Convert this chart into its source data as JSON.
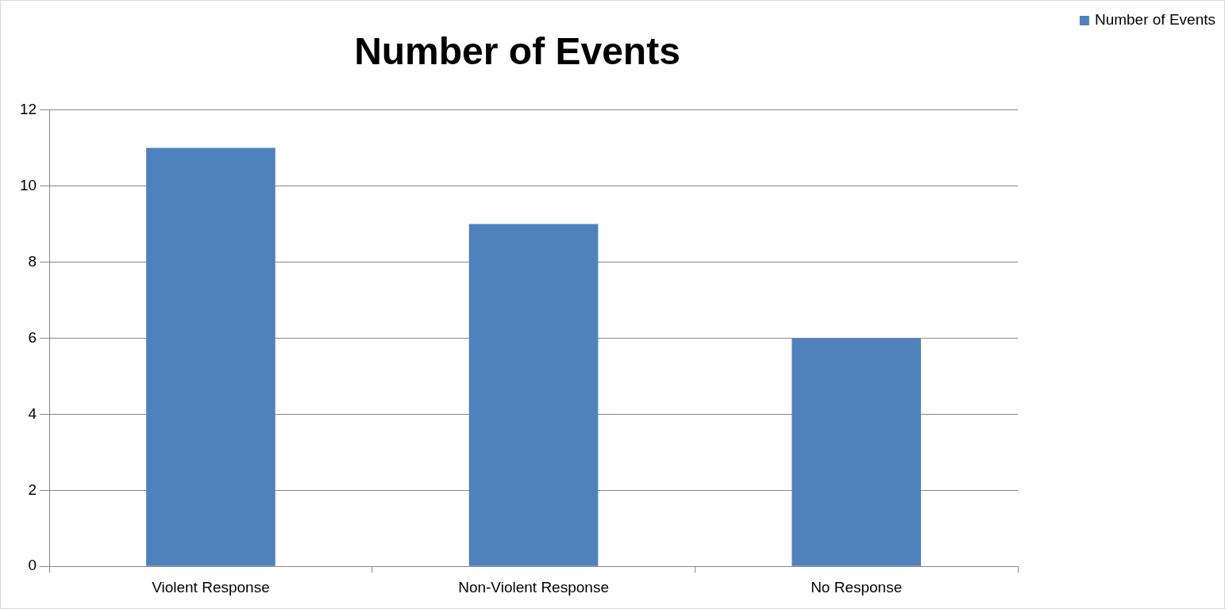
{
  "chart_data": {
    "type": "bar",
    "title": "Number of Events",
    "categories": [
      "Violent Response",
      "Non-Violent Response",
      "No Response"
    ],
    "series": [
      {
        "name": "Number of Events",
        "color": "#4f81bd",
        "values": [
          11,
          9,
          6
        ]
      }
    ],
    "ylim": [
      0,
      12
    ],
    "yticks": [
      0,
      2,
      4,
      6,
      8,
      10,
      12
    ],
    "grid": "y",
    "legend": "top right"
  }
}
